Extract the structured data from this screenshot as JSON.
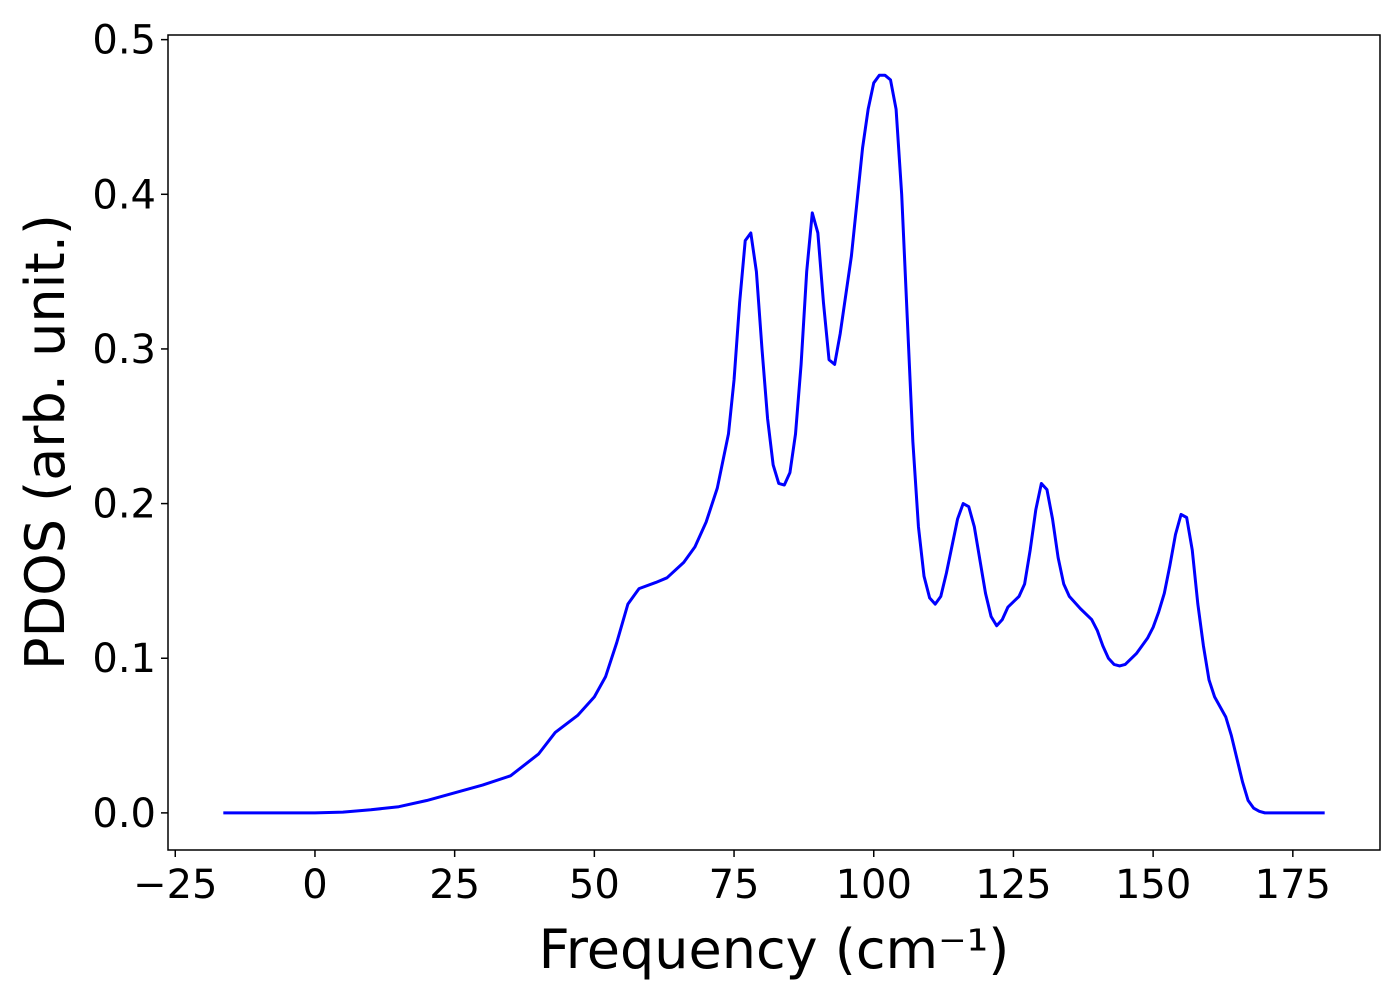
{
  "chart_data": {
    "type": "line",
    "x_label": "Frequency (cm⁻¹)",
    "y_label": "PDOS (arb. unit.)",
    "x": [
      -16.4,
      -10,
      -5,
      0,
      5,
      10,
      15,
      20,
      25,
      30,
      35,
      40,
      43,
      47,
      50,
      52,
      54,
      56,
      58,
      61,
      63,
      66,
      68,
      70,
      72,
      74,
      75,
      76,
      77,
      78,
      79,
      80,
      81,
      82,
      83,
      84,
      85,
      86,
      87,
      88,
      89,
      90,
      91,
      92,
      93,
      94,
      96,
      98,
      99,
      100,
      101,
      102,
      103,
      104,
      105,
      106,
      107,
      108,
      109,
      110,
      111,
      112,
      113,
      115,
      116,
      117,
      118,
      120,
      121,
      122,
      123,
      124,
      126,
      127,
      128,
      129,
      130,
      131,
      132,
      133,
      134,
      135,
      137,
      139,
      140,
      141,
      142,
      143,
      144,
      145,
      147,
      149,
      150,
      151,
      152,
      153,
      154,
      155,
      156,
      157,
      158,
      159,
      160,
      161,
      163,
      164,
      165,
      166,
      167,
      168,
      169,
      170,
      180.7
    ],
    "series": [
      {
        "color": "#0000ff",
        "values": [
          0,
          0,
          0,
          0,
          0.0005,
          0.002,
          0.004,
          0.008,
          0.013,
          0.018,
          0.024,
          0.038,
          0.052,
          0.063,
          0.075,
          0.088,
          0.11,
          0.135,
          0.145,
          0.149,
          0.152,
          0.162,
          0.172,
          0.188,
          0.21,
          0.245,
          0.28,
          0.33,
          0.37,
          0.375,
          0.35,
          0.3,
          0.255,
          0.225,
          0.213,
          0.212,
          0.22,
          0.245,
          0.29,
          0.35,
          0.388,
          0.375,
          0.33,
          0.293,
          0.29,
          0.31,
          0.36,
          0.43,
          0.455,
          0.472,
          0.477,
          0.477,
          0.474,
          0.455,
          0.4,
          0.32,
          0.24,
          0.185,
          0.153,
          0.139,
          0.135,
          0.14,
          0.155,
          0.19,
          0.2,
          0.198,
          0.185,
          0.142,
          0.127,
          0.121,
          0.125,
          0.133,
          0.14,
          0.148,
          0.17,
          0.196,
          0.213,
          0.209,
          0.19,
          0.165,
          0.148,
          0.14,
          0.132,
          0.125,
          0.118,
          0.108,
          0.1,
          0.096,
          0.095,
          0.096,
          0.103,
          0.113,
          0.12,
          0.13,
          0.142,
          0.16,
          0.18,
          0.193,
          0.191,
          0.17,
          0.135,
          0.108,
          0.086,
          0.075,
          0.062,
          0.05,
          0.035,
          0.02,
          0.008,
          0.003,
          0.001,
          0,
          0
        ]
      }
    ],
    "xlim": [
      -26.3,
      190.6
    ],
    "ylim": [
      -0.024,
      0.503
    ],
    "xticks": [
      {
        "value": -25,
        "label": "−25"
      },
      0,
      25,
      50,
      75,
      100,
      125,
      150,
      175
    ],
    "yticks": [
      {
        "value": 0,
        "label": "0.0"
      },
      0.1,
      0.2,
      0.3,
      0.4,
      0.5
    ],
    "grid": false
  }
}
